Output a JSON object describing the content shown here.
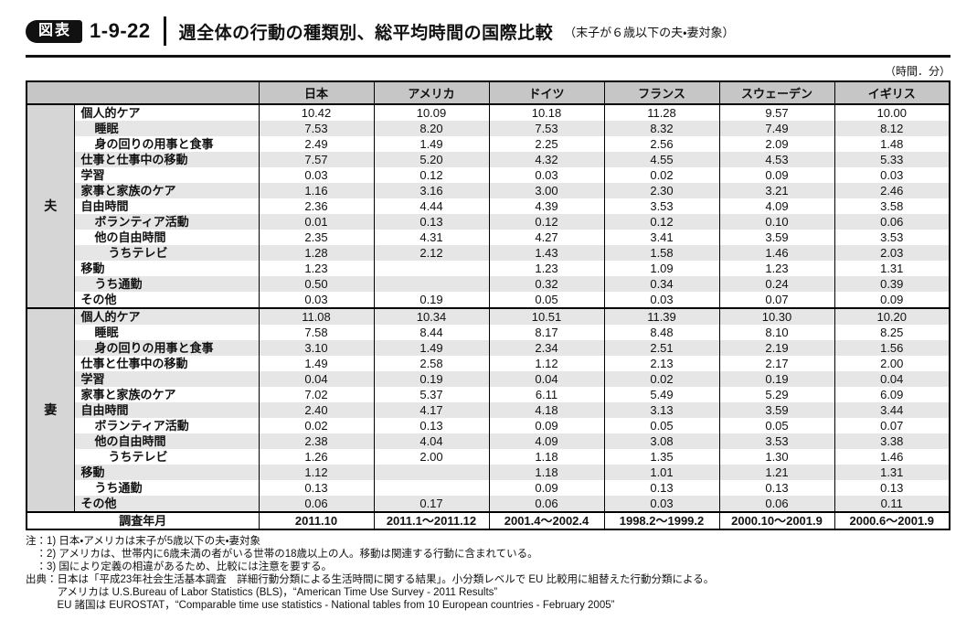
{
  "figure_header": {
    "badge": "図表",
    "number": "1-9-22",
    "title": "週全体の行動の種類別、総平均時間の国際比較",
    "subtitle": "（末子が６歳以下の夫・妻対象）"
  },
  "unit_note": "（時間．分）",
  "colors": {
    "header_bg": "#c6c6c6",
    "group_cell_bg": "#d6d6d6",
    "stripe_bg": "#e6e6e6",
    "border": "#000000",
    "badge_bg": "#111111"
  },
  "table": {
    "columns": [
      "日本",
      "アメリカ",
      "ドイツ",
      "フランス",
      "スウェーデン",
      "イギリス"
    ],
    "sections": [
      {
        "group": "夫",
        "rows": [
          {
            "label": "個人的ケア",
            "indent": 0,
            "values": [
              "10.42",
              "10.09",
              "10.18",
              "11.28",
              "9.57",
              "10.00"
            ]
          },
          {
            "label": "睡眠",
            "indent": 1,
            "values": [
              "7.53",
              "8.20",
              "7.53",
              "8.32",
              "7.49",
              "8.12"
            ]
          },
          {
            "label": "身の回りの用事と食事",
            "indent": 1,
            "values": [
              "2.49",
              "1.49",
              "2.25",
              "2.56",
              "2.09",
              "1.48"
            ]
          },
          {
            "label": "仕事と仕事中の移動",
            "indent": 0,
            "values": [
              "7.57",
              "5.20",
              "4.32",
              "4.55",
              "4.53",
              "5.33"
            ]
          },
          {
            "label": "学習",
            "indent": 0,
            "values": [
              "0.03",
              "0.12",
              "0.03",
              "0.02",
              "0.09",
              "0.03"
            ]
          },
          {
            "label": "家事と家族のケア",
            "indent": 0,
            "values": [
              "1.16",
              "3.16",
              "3.00",
              "2.30",
              "3.21",
              "2.46"
            ]
          },
          {
            "label": "自由時間",
            "indent": 0,
            "values": [
              "2.36",
              "4.44",
              "4.39",
              "3.53",
              "4.09",
              "3.58"
            ]
          },
          {
            "label": "ボランティア活動",
            "indent": 1,
            "values": [
              "0.01",
              "0.13",
              "0.12",
              "0.12",
              "0.10",
              "0.06"
            ]
          },
          {
            "label": "他の自由時間",
            "indent": 1,
            "values": [
              "2.35",
              "4.31",
              "4.27",
              "3.41",
              "3.59",
              "3.53"
            ]
          },
          {
            "label": "うちテレビ",
            "indent": 2,
            "values": [
              "1.28",
              "2.12",
              "1.43",
              "1.58",
              "1.46",
              "2.03"
            ]
          },
          {
            "label": "移動",
            "indent": 0,
            "values": [
              "1.23",
              "",
              "1.23",
              "1.09",
              "1.23",
              "1.31"
            ]
          },
          {
            "label": "うち通勤",
            "indent": 1,
            "values": [
              "0.50",
              "",
              "0.32",
              "0.34",
              "0.24",
              "0.39"
            ]
          },
          {
            "label": "その他",
            "indent": 0,
            "values": [
              "0.03",
              "0.19",
              "0.05",
              "0.03",
              "0.07",
              "0.09"
            ]
          }
        ]
      },
      {
        "group": "妻",
        "rows": [
          {
            "label": "個人的ケア",
            "indent": 0,
            "values": [
              "11.08",
              "10.34",
              "10.51",
              "11.39",
              "10.30",
              "10.20"
            ]
          },
          {
            "label": "睡眠",
            "indent": 1,
            "values": [
              "7.58",
              "8.44",
              "8.17",
              "8.48",
              "8.10",
              "8.25"
            ]
          },
          {
            "label": "身の回りの用事と食事",
            "indent": 1,
            "values": [
              "3.10",
              "1.49",
              "2.34",
              "2.51",
              "2.19",
              "1.56"
            ]
          },
          {
            "label": "仕事と仕事中の移動",
            "indent": 0,
            "values": [
              "1.49",
              "2.58",
              "1.12",
              "2.13",
              "2.17",
              "2.00"
            ]
          },
          {
            "label": "学習",
            "indent": 0,
            "values": [
              "0.04",
              "0.19",
              "0.04",
              "0.02",
              "0.19",
              "0.04"
            ]
          },
          {
            "label": "家事と家族のケア",
            "indent": 0,
            "values": [
              "7.02",
              "5.37",
              "6.11",
              "5.49",
              "5.29",
              "6.09"
            ]
          },
          {
            "label": "自由時間",
            "indent": 0,
            "values": [
              "2.40",
              "4.17",
              "4.18",
              "3.13",
              "3.59",
              "3.44"
            ]
          },
          {
            "label": "ボランティア活動",
            "indent": 1,
            "values": [
              "0.02",
              "0.13",
              "0.09",
              "0.05",
              "0.05",
              "0.07"
            ]
          },
          {
            "label": "他の自由時間",
            "indent": 1,
            "values": [
              "2.38",
              "4.04",
              "4.09",
              "3.08",
              "3.53",
              "3.38"
            ]
          },
          {
            "label": "うちテレビ",
            "indent": 2,
            "values": [
              "1.26",
              "2.00",
              "1.18",
              "1.35",
              "1.30",
              "1.46"
            ]
          },
          {
            "label": "移動",
            "indent": 0,
            "values": [
              "1.12",
              "",
              "1.18",
              "1.01",
              "1.21",
              "1.31"
            ]
          },
          {
            "label": "うち通勤",
            "indent": 1,
            "values": [
              "0.13",
              "",
              "0.09",
              "0.13",
              "0.13",
              "0.13"
            ]
          },
          {
            "label": "その他",
            "indent": 0,
            "values": [
              "0.06",
              "0.17",
              "0.06",
              "0.03",
              "0.06",
              "0.11"
            ]
          }
        ]
      }
    ],
    "survey_row": {
      "label": "調査年月",
      "values": [
        "2011.10",
        "2011.1～2011.12",
        "2001.4～2002.4",
        "1998.2～1999.2",
        "2000.10～2001.9",
        "2000.6～2001.9"
      ]
    }
  },
  "notes": [
    "注：1) 日本・アメリカは末子が5歳以下の夫・妻対象",
    "　：2) アメリカは、世帯内に6歳未満の者がいる世帯の18歳以上の人。移動は関連する行動に含まれている。",
    "　：3) 国により定義の相違があるため、比較には注意を要する。",
    "出典：日本は「平成23年社会生活基本調査　詳細行動分類による生活時間に関する結果」。小分類レベルで EU 比較用に組替えた行動分類による。",
    "　　　アメリカは U.S.Bureau of Labor Statistics (BLS)，“American Time Use Survey - 2011 Results”",
    "　　　EU 諸国は EUROSTAT，“Comparable time use statistics - National tables from 10 European countries - February 2005”"
  ]
}
